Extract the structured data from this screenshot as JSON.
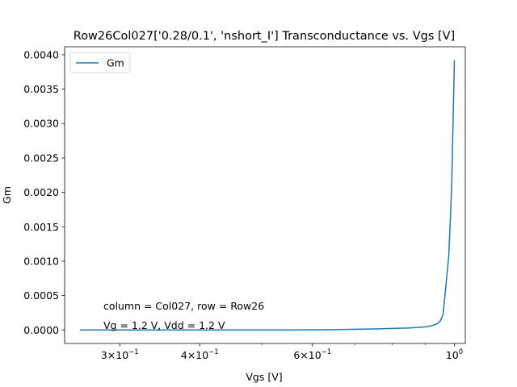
{
  "chart_data": {
    "type": "line",
    "title": "Row26Col027['0.28/0.1', 'nshort_I'] Transconductance vs. Vgs [V]",
    "xlabel": "Vgs [V]",
    "ylabel": "Gm",
    "xscale": "log",
    "xlim": [
      0.246,
      1.04
    ],
    "ylim": [
      -0.000196,
      0.004116
    ],
    "grid": false,
    "legend": "top-left",
    "x_major_ticks": [
      {
        "value": 0.3,
        "base": "3×10",
        "exp": "−1"
      },
      {
        "value": 0.4,
        "base": "4×10",
        "exp": "−1"
      },
      {
        "value": 0.6,
        "base": "6×10",
        "exp": "−1"
      },
      {
        "value": 1.0,
        "base": "10",
        "exp": "0"
      }
    ],
    "x_minor_ticks": [
      0.5,
      0.7,
      0.8,
      0.9
    ],
    "y_ticks": [
      "0.0000",
      "0.0005",
      "0.0010",
      "0.0015",
      "0.0020",
      "0.0025",
      "0.0030",
      "0.0035",
      "0.0040"
    ],
    "y_tick_values": [
      0,
      0.0005,
      0.001,
      0.0015,
      0.002,
      0.0025,
      0.003,
      0.0035,
      0.004
    ],
    "annotations": [
      "column = Col027, row = Row26",
      "Vg = 1.2 V, Vdd = 1.2 V"
    ],
    "series": [
      {
        "name": "Gm",
        "color": "#1f77b4",
        "x": [
          0.26,
          0.3,
          0.35,
          0.4,
          0.45,
          0.5,
          0.55,
          0.6,
          0.65,
          0.7,
          0.75,
          0.8,
          0.85,
          0.88,
          0.9,
          0.92,
          0.94,
          0.95,
          0.96,
          0.97,
          0.98,
          0.99,
          1.0
        ],
        "values": [
          0,
          0,
          0,
          0,
          0,
          0,
          1e-06,
          2e-06,
          5e-06,
          1e-05,
          1.5e-05,
          2.2e-05,
          3e-05,
          3.7e-05,
          4.5e-05,
          6e-05,
          9e-05,
          0.00013,
          0.00022,
          0.00065,
          0.00108,
          0.00205,
          0.00392
        ]
      }
    ]
  }
}
